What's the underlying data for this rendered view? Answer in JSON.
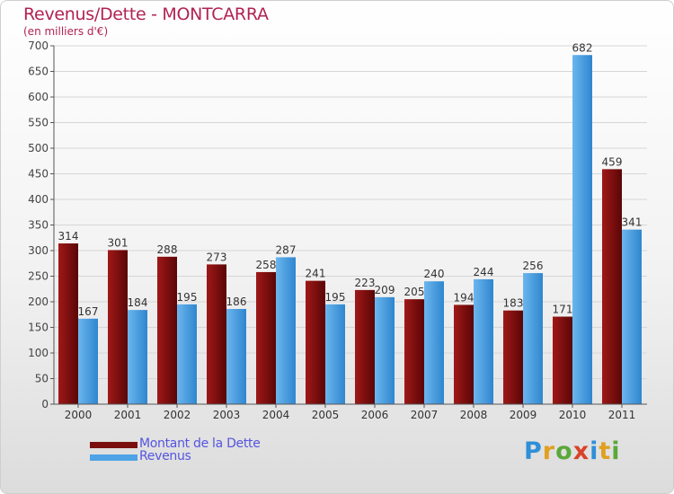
{
  "chart_data": {
    "type": "bar",
    "title": "Revenus/Dette - MONTCARRA",
    "subtitle": "(en milliers d'€)",
    "categories": [
      "2000",
      "2001",
      "2002",
      "2003",
      "2004",
      "2005",
      "2006",
      "2007",
      "2008",
      "2009",
      "2010",
      "2011"
    ],
    "series": [
      {
        "name": "Montant de la Dette",
        "color": "#7a0e0e",
        "values": [
          314,
          301,
          288,
          273,
          258,
          241,
          223,
          205,
          194,
          183,
          171,
          459
        ]
      },
      {
        "name": "Revenus",
        "color": "#4da3e6",
        "values": [
          167,
          184,
          195,
          186,
          287,
          195,
          209,
          240,
          244,
          256,
          682,
          341
        ]
      }
    ],
    "ylim": [
      0,
      700
    ],
    "yticks": [
      0,
      50,
      100,
      150,
      200,
      250,
      300,
      350,
      400,
      450,
      500,
      550,
      600,
      650,
      700
    ],
    "grid": true,
    "legend_position": "bottom-left"
  },
  "brand": {
    "letters": [
      "P",
      "r",
      "o",
      "x",
      "i",
      "t",
      "i"
    ],
    "colors": [
      "#2f8fd8",
      "#e0a020",
      "#5aa83a",
      "#d8432a",
      "#2f8fd8",
      "#e0a020",
      "#5aa83a"
    ]
  }
}
